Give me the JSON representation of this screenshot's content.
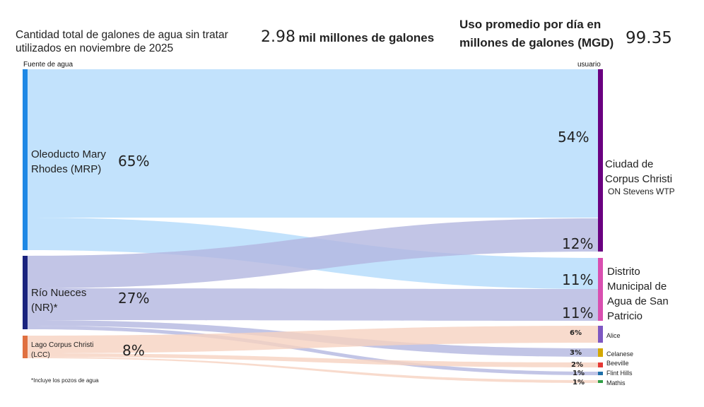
{
  "header": {
    "description": "Cantidad total de galones de agua sin tratar utilizados en noviembre de 2025",
    "total_value": "2.98",
    "total_unit": "mil millones de galones",
    "avg_label": "Uso promedio por día en millones de galones (MGD)",
    "avg_value": "99.35"
  },
  "column_labels": {
    "source": "Fuente de agua",
    "target": "usuario"
  },
  "footnote": "*Incluye los pozos de agua",
  "chart_data": {
    "type": "sankey",
    "sources": [
      {
        "id": "MRP",
        "name": "Oleoducto Mary Rhodes (MRP)",
        "pct_label": "65%",
        "value": 65,
        "color": "#1e88e5"
      },
      {
        "id": "NR",
        "name": "Río Nueces (NR)*",
        "pct_label": "27%",
        "value": 27,
        "color": "#1a237e"
      },
      {
        "id": "LCC",
        "name": "Lago Corpus Christi (LCC)",
        "pct_label": "8%",
        "value": 8,
        "color": "#e07040"
      }
    ],
    "targets": [
      {
        "id": "CC",
        "name": "Ciudad de Corpus Christi",
        "sub": "ON Stevens WTP",
        "color": "#6a0080"
      },
      {
        "id": "SP",
        "name": "Distrito Municipal de Agua de San Patricio",
        "color": "#d94fb0"
      },
      {
        "id": "AL",
        "name": "Alice",
        "color": "#7e57c2"
      },
      {
        "id": "CE",
        "name": "Celanese",
        "color": "#d4a800"
      },
      {
        "id": "BE",
        "name": "Beeville",
        "color": "#e53935"
      },
      {
        "id": "FH",
        "name": "Flint Hills",
        "color": "#1e6fa8"
      },
      {
        "id": "MA",
        "name": "Mathis",
        "color": "#2e9e44"
      }
    ],
    "flows": [
      {
        "from": "MRP",
        "to": "CC",
        "value": 54,
        "label": "54%",
        "color": "#b3dbfb"
      },
      {
        "from": "MRP",
        "to": "SP",
        "value": 11,
        "label": "11%",
        "color": "#b3dbfb"
      },
      {
        "from": "NR",
        "to": "CC",
        "value": 12,
        "label": "12%",
        "color": "#b3b6e0"
      },
      {
        "from": "NR",
        "to": "SP",
        "value": 11,
        "label": "11%",
        "color": "#b3b6e0"
      },
      {
        "from": "NR",
        "to": "CE",
        "value": 3,
        "label": "3%",
        "color": "#b3b6e0"
      },
      {
        "from": "NR",
        "to": "FH",
        "value": 1,
        "label": "1%",
        "color": "#b3b6e0"
      },
      {
        "from": "LCC",
        "to": "AL",
        "value": 6,
        "label": "6%",
        "color": "#f6d2c1"
      },
      {
        "from": "LCC",
        "to": "BE",
        "value": 2,
        "label": "2%",
        "color": "#f6d2c1"
      },
      {
        "from": "LCC",
        "to": "MA",
        "value": 1,
        "label": "1%",
        "color": "#f6d2c1"
      }
    ]
  }
}
